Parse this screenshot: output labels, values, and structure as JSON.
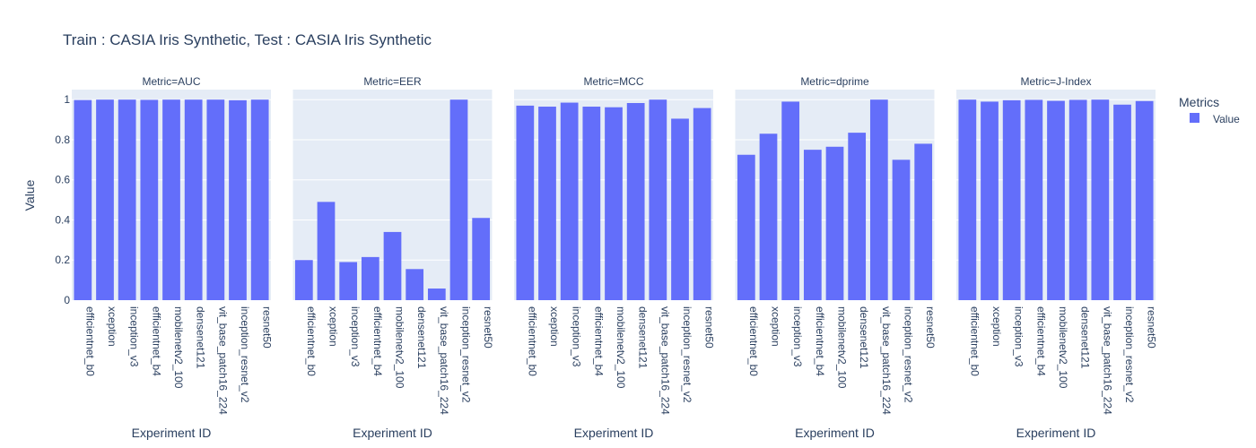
{
  "chart_data": {
    "type": "bar",
    "title": "Train : CASIA Iris Synthetic, Test : CASIA Iris Synthetic",
    "ylabel": "Value",
    "xlabel": "Experiment ID",
    "ylim": [
      0,
      1.05
    ],
    "yticks": [
      "0",
      "0.2",
      "0.4",
      "0.6",
      "0.8",
      "1"
    ],
    "bar_color": "#636efa",
    "plot_bg": "#e5ecf6",
    "categories": [
      "efficientnet_b0",
      "xception",
      "inception_v3",
      "efficientnet_b4",
      "mobilenetv2_100",
      "densenet121",
      "vit_base_patch16_224",
      "inception_resnet_v2",
      "resnet50"
    ],
    "legend": {
      "title": "Metrics",
      "position": "top-right",
      "entries": [
        "Value"
      ]
    },
    "facets": [
      {
        "title": "Metric=AUC",
        "values": [
          0.998,
          1.0,
          1.0,
          0.999,
          1.0,
          1.0,
          1.0,
          0.997,
          1.0
        ]
      },
      {
        "title": "Metric=EER",
        "values": [
          0.2,
          0.49,
          0.19,
          0.215,
          0.34,
          0.155,
          0.058,
          1.0,
          0.41
        ]
      },
      {
        "title": "Metric=MCC",
        "values": [
          0.97,
          0.965,
          0.985,
          0.965,
          0.962,
          0.983,
          1.0,
          0.905,
          0.958
        ]
      },
      {
        "title": "Metric=dprime",
        "values": [
          0.725,
          0.83,
          0.99,
          0.75,
          0.765,
          0.835,
          1.0,
          0.7,
          0.78
        ]
      },
      {
        "title": "Metric=J-Index",
        "values": [
          1.0,
          0.99,
          0.997,
          0.999,
          0.994,
          0.999,
          1.0,
          0.975,
          0.993
        ]
      }
    ]
  }
}
